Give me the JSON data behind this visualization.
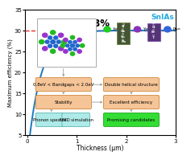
{
  "title": "SnIAs",
  "xlabel": "Thickness (μm)",
  "ylabel": "Maximum efficiency (%)",
  "ylim": [
    5,
    35
  ],
  "xlim": [
    -0.05,
    3
  ],
  "curve_color": "#1a7abf",
  "dashed_color": "#e83030",
  "dashed_y": 30.08,
  "efficiency_label": "30.08%",
  "bg_color": "#ffffff",
  "boxes": [
    {
      "text": "0.8eV < Bandgaps < 2.0eV",
      "xf": 0.08,
      "yf": 0.36,
      "wf": 0.35,
      "hf": 0.09,
      "fc": "#f5c497",
      "ec": "#c87820",
      "fontsize": 4.0
    },
    {
      "text": "Double helical structure",
      "xf": 0.53,
      "yf": 0.36,
      "wf": 0.35,
      "hf": 0.09,
      "fc": "#f5c497",
      "ec": "#c87820",
      "fontsize": 4.0
    },
    {
      "text": "Stability",
      "xf": 0.08,
      "yf": 0.22,
      "wf": 0.35,
      "hf": 0.09,
      "fc": "#f5c497",
      "ec": "#c87820",
      "fontsize": 4.0
    },
    {
      "text": "Excellent efficiency",
      "xf": 0.53,
      "yf": 0.22,
      "wf": 0.35,
      "hf": 0.09,
      "fc": "#f5c497",
      "ec": "#c87820",
      "fontsize": 4.0
    },
    {
      "text": "Phonon spectra",
      "xf": 0.08,
      "yf": 0.08,
      "wf": 0.165,
      "hf": 0.09,
      "fc": "#aeeae8",
      "ec": "#44aaaa",
      "fontsize": 3.8
    },
    {
      "text": "AIMD simulation",
      "xf": 0.255,
      "yf": 0.08,
      "wf": 0.165,
      "hf": 0.09,
      "fc": "#aeeae8",
      "ec": "#44aaaa",
      "fontsize": 3.8
    },
    {
      "text": "Promising candidates",
      "xf": 0.53,
      "yf": 0.08,
      "wf": 0.35,
      "hf": 0.09,
      "fc": "#33dd33",
      "ec": "#119911",
      "fontsize": 4.0
    }
  ],
  "inset_box": {
    "xf": 0.08,
    "yf": 0.55,
    "wf": 0.39,
    "hf": 0.38
  },
  "xticks": [
    0,
    1,
    2,
    3
  ],
  "yticks": [
    5,
    10,
    15,
    20,
    25,
    30,
    35
  ]
}
